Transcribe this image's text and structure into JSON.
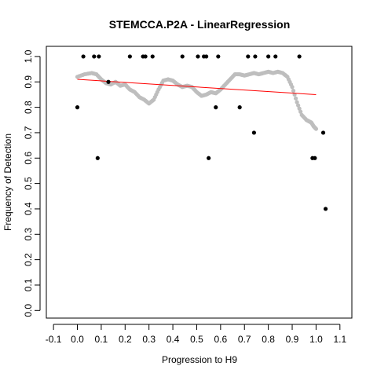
{
  "chart_data": {
    "type": "scatter",
    "title": "STEMCCA.P2A - LinearRegression",
    "xlabel": "Progression to H9",
    "ylabel": "Frequency of Detection",
    "xlim": [
      -0.13,
      1.15
    ],
    "ylim": [
      -0.03,
      1.04
    ],
    "xticks": [
      -0.1,
      0.0,
      0.1,
      0.2,
      0.3,
      0.4,
      0.5,
      0.6,
      0.7,
      0.8,
      0.9,
      1.0,
      1.1
    ],
    "xtick_labels": [
      "-0.1",
      "0.0",
      "0.1",
      "0.2",
      "0.3",
      "0.4",
      "0.5",
      "0.6",
      "0.7",
      "0.8",
      "0.9",
      "1.0",
      "1.1"
    ],
    "yticks": [
      0.0,
      0.1,
      0.2,
      0.3,
      0.4,
      0.5,
      0.6,
      0.7,
      0.8,
      0.9,
      1.0
    ],
    "ytick_labels": [
      "0.0",
      "0.1",
      "0.2",
      "0.3",
      "0.4",
      "0.5",
      "0.6",
      "0.7",
      "0.8",
      "0.9",
      "1.0"
    ],
    "grid": false,
    "legend": "none",
    "colors": {
      "observed": "#000000",
      "smoothed": "#bebebe",
      "regression": "#ff0000",
      "frame": "#000000"
    },
    "series": [
      {
        "role": "observed",
        "type": "scatter",
        "x": [
          0.0,
          0.025,
          0.07,
          0.085,
          0.09,
          0.13,
          0.22,
          0.275,
          0.285,
          0.315,
          0.44,
          0.505,
          0.53,
          0.54,
          0.55,
          0.58,
          0.59,
          0.68,
          0.715,
          0.74,
          0.745,
          0.8,
          0.83,
          0.93,
          0.985,
          0.995,
          1.03,
          1.04
        ],
        "y": [
          0.8,
          1.0,
          1.0,
          0.6,
          1.0,
          0.9,
          1.0,
          1.0,
          1.0,
          1.0,
          1.0,
          1.0,
          1.0,
          1.0,
          0.6,
          0.8,
          1.0,
          0.8,
          1.0,
          0.7,
          1.0,
          1.0,
          1.0,
          1.0,
          0.6,
          0.6,
          0.7,
          0.4
        ]
      },
      {
        "role": "smoothed",
        "type": "line-points",
        "x": [
          0.0,
          0.03,
          0.06,
          0.08,
          0.1,
          0.12,
          0.14,
          0.16,
          0.18,
          0.2,
          0.22,
          0.24,
          0.26,
          0.28,
          0.3,
          0.32,
          0.34,
          0.36,
          0.38,
          0.4,
          0.42,
          0.44,
          0.46,
          0.48,
          0.5,
          0.52,
          0.54,
          0.56,
          0.58,
          0.6,
          0.62,
          0.64,
          0.66,
          0.68,
          0.7,
          0.72,
          0.74,
          0.76,
          0.78,
          0.8,
          0.82,
          0.84,
          0.86,
          0.88,
          0.9,
          0.92,
          0.94,
          0.96,
          0.97,
          0.98,
          0.99,
          1.0
        ],
        "y": [
          0.92,
          0.93,
          0.935,
          0.93,
          0.91,
          0.895,
          0.89,
          0.9,
          0.885,
          0.89,
          0.87,
          0.86,
          0.84,
          0.83,
          0.815,
          0.83,
          0.87,
          0.905,
          0.91,
          0.905,
          0.89,
          0.88,
          0.885,
          0.88,
          0.86,
          0.845,
          0.85,
          0.86,
          0.855,
          0.87,
          0.89,
          0.91,
          0.93,
          0.93,
          0.925,
          0.93,
          0.935,
          0.93,
          0.935,
          0.94,
          0.935,
          0.94,
          0.935,
          0.92,
          0.88,
          0.82,
          0.77,
          0.75,
          0.745,
          0.74,
          0.725,
          0.715
        ]
      },
      {
        "role": "regression",
        "type": "line",
        "x": [
          0.0,
          1.0
        ],
        "y": [
          0.91,
          0.85
        ]
      }
    ]
  }
}
